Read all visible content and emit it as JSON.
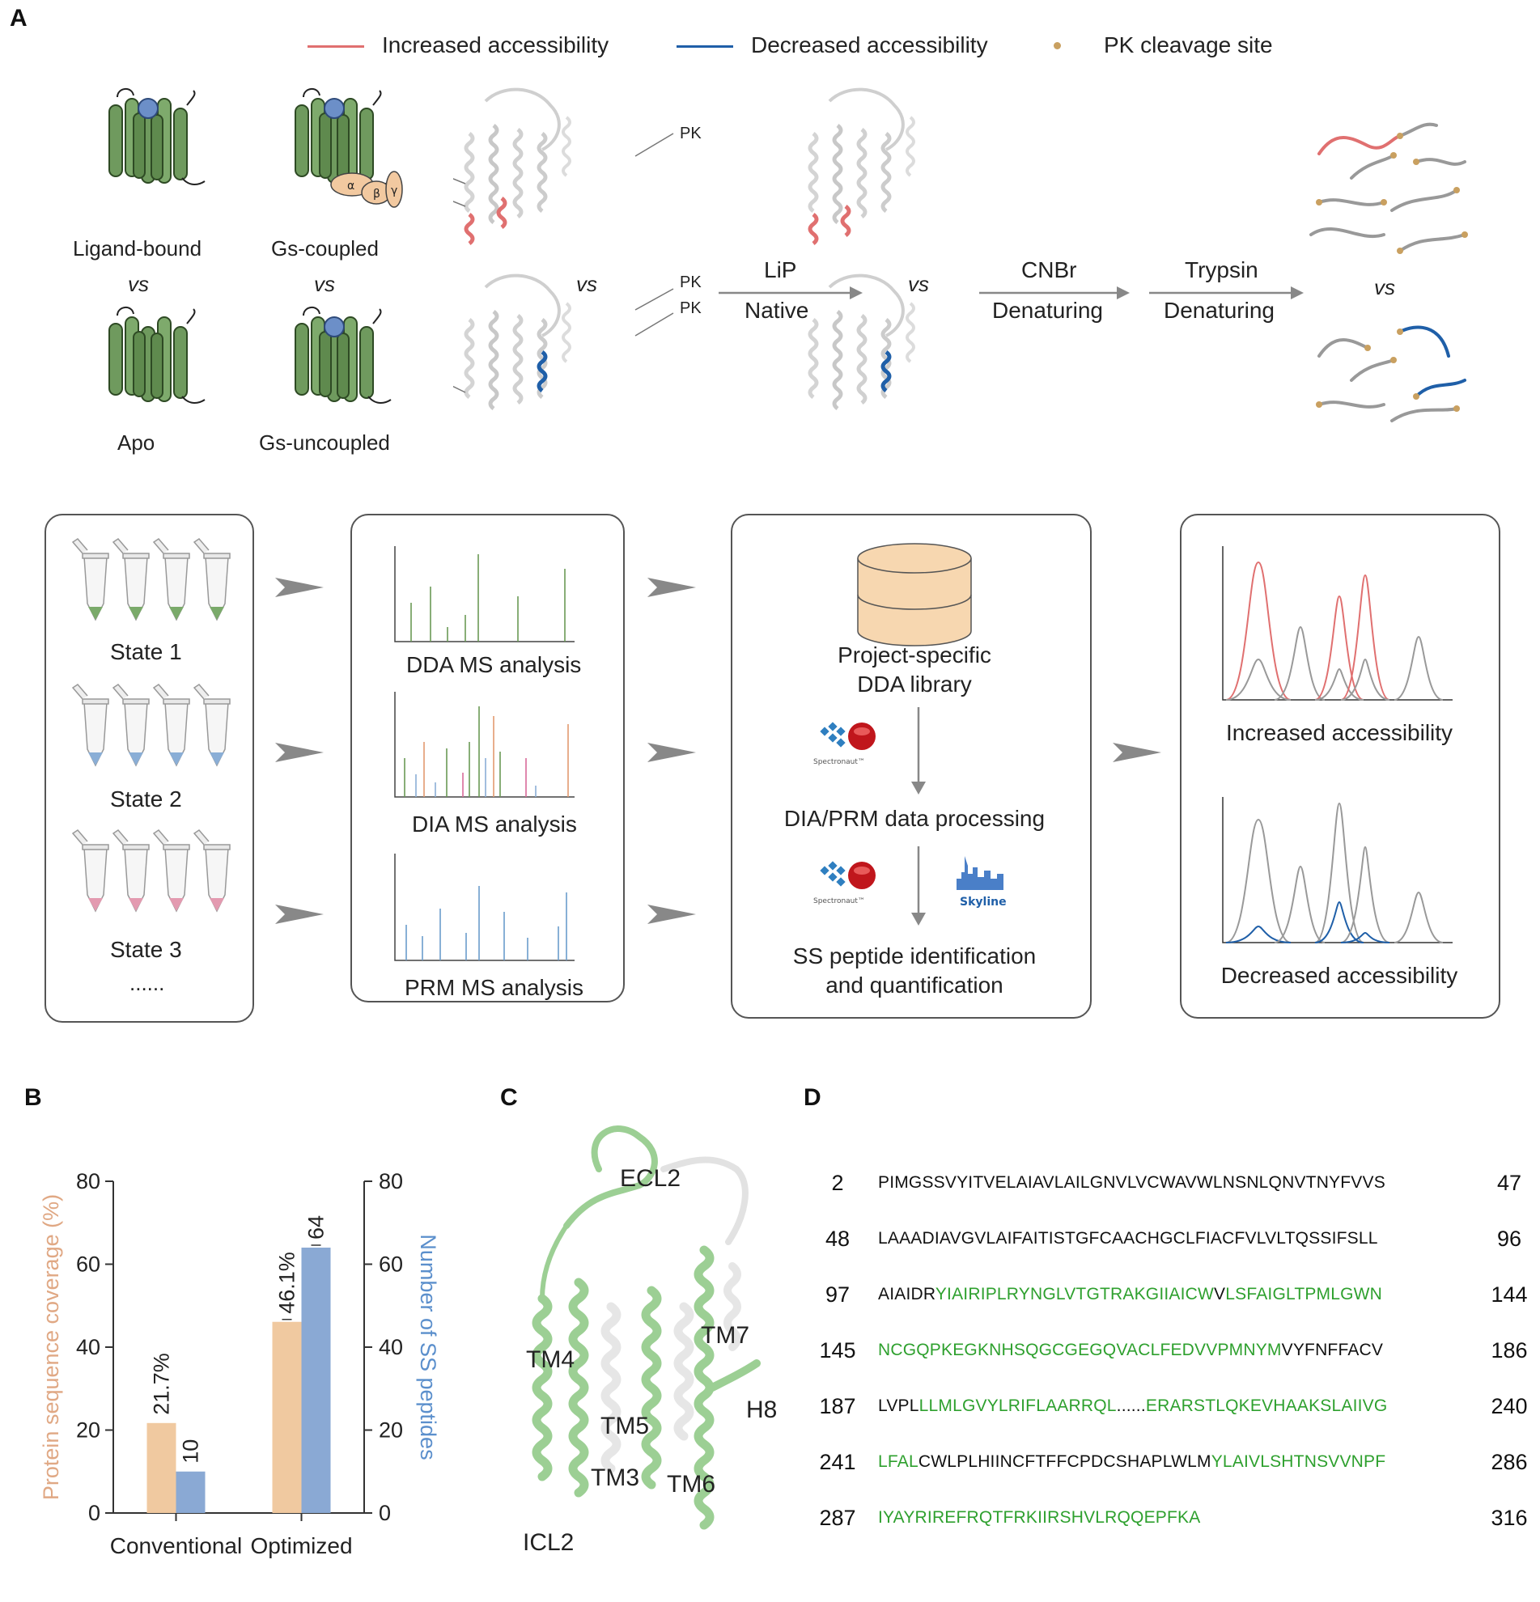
{
  "panels": {
    "a": "A",
    "b": "B",
    "c": "C",
    "d": "D"
  },
  "legend": {
    "increased": "Increased accessibility",
    "decreased": "Decreased accessibility",
    "cleavage": "PK cleavage site",
    "colors": {
      "increased": "#e07070",
      "decreased": "#1f5fa8",
      "cleavage": "#c9a060"
    }
  },
  "states": {
    "ligand_bound": "Ligand-bound",
    "apo": "Apo",
    "gs_coupled": "Gs-coupled",
    "gs_uncoupled": "Gs-uncoupled",
    "vs": "vs",
    "alpha": "α",
    "beta": "β",
    "gamma": "γ"
  },
  "pk_label": "PK",
  "steps": {
    "lip": "LiP",
    "native": "Native",
    "cnbr": "CNBr",
    "denaturing": "Denaturing",
    "trypsin": "Trypsin"
  },
  "workflow": {
    "state1": "State 1",
    "state2": "State 2",
    "state3": "State 3",
    "ellipsis": "......",
    "dda": "DDA MS analysis",
    "dia": "DIA MS analysis",
    "prm": "PRM MS analysis",
    "library_l1": "Project-specific",
    "library_l2": "DDA library",
    "processing": "DIA/PRM data processing",
    "ss_l1": "SS peptide identification",
    "ss_l2": "and quantification",
    "spectronaut": "Spectronaut™",
    "skyline": "Skyline",
    "increased": "Increased accessibility",
    "decreased": "Decreased accessibility"
  },
  "chart_data": {
    "type": "bar",
    "categories": [
      "Conventional",
      "Optimized"
    ],
    "series": [
      {
        "name": "Protein sequence coverage (%)",
        "values": [
          21.7,
          46.1
        ],
        "axis": "left",
        "color": "#f0c9a0",
        "labels": [
          "21.7%",
          "46.1%"
        ]
      },
      {
        "name": "Number of SS peptides",
        "values": [
          10,
          64
        ],
        "axis": "right",
        "color": "#8aa9d4",
        "labels": [
          "10",
          "64"
        ]
      }
    ],
    "ylabel_left": "Protein sequence coverage (%)",
    "ylabel_right": "Number of SS peptides",
    "ylim": [
      0,
      80
    ],
    "yticks": [
      "0",
      "20",
      "40",
      "60",
      "80"
    ]
  },
  "structure_labels": {
    "ecl2": "ECL2",
    "tm4": "TM4",
    "tm7": "TM7",
    "h8": "H8",
    "tm5": "TM5",
    "tm3": "TM3",
    "tm6": "TM6",
    "icl2": "ICL2"
  },
  "sequence": [
    {
      "start": "2",
      "end": "47",
      "segments": [
        {
          "t": "PIMGSSVYITVELAIAVLAILGNVLVCWAVWLNSNLQNVTNYFVVS",
          "g": false
        }
      ]
    },
    {
      "start": "48",
      "end": "96",
      "segments": [
        {
          "t": "LAAADIAVGVLAIFAITISTGFCAACHGCLFIACFVLVLTQSSIFSLL",
          "g": false
        }
      ]
    },
    {
      "start": "97",
      "end": "144",
      "segments": [
        {
          "t": "AIAIDR",
          "g": false
        },
        {
          "t": "YIAIRIPLRYNGLVTGTRAKGIIAICW",
          "g": true
        },
        {
          "t": "V",
          "g": false
        },
        {
          "t": "LSFAIGLTPMLGWN",
          "g": true
        }
      ]
    },
    {
      "start": "145",
      "end": "186",
      "segments": [
        {
          "t": "NCGQPKEGKNHSQGCGEGQVACLFEDVVPMNYM",
          "g": true
        },
        {
          "t": "VYFNFFACV",
          "g": false
        }
      ]
    },
    {
      "start": "187",
      "end": "240",
      "segments": [
        {
          "t": "LVPL",
          "g": false
        },
        {
          "t": "LLMLGVYLRIFLAARRQL",
          "g": true
        },
        {
          "t": "......",
          "g": false
        },
        {
          "t": "ERARSTLQKEVHAAKSLAIIVG",
          "g": true
        }
      ]
    },
    {
      "start": "241",
      "end": "286",
      "segments": [
        {
          "t": "LFAL",
          "g": true
        },
        {
          "t": "CWLPLHIINCFTFFCPDCSHAPLWLM",
          "g": false
        },
        {
          "t": "YLAIVLSHTNSVVNPF",
          "g": true
        }
      ]
    },
    {
      "start": "287",
      "end": "316",
      "segments": [
        {
          "t": "IYAYRIREFRQTFRKIIRSHVLRQQEPFKA",
          "g": true
        }
      ]
    }
  ]
}
